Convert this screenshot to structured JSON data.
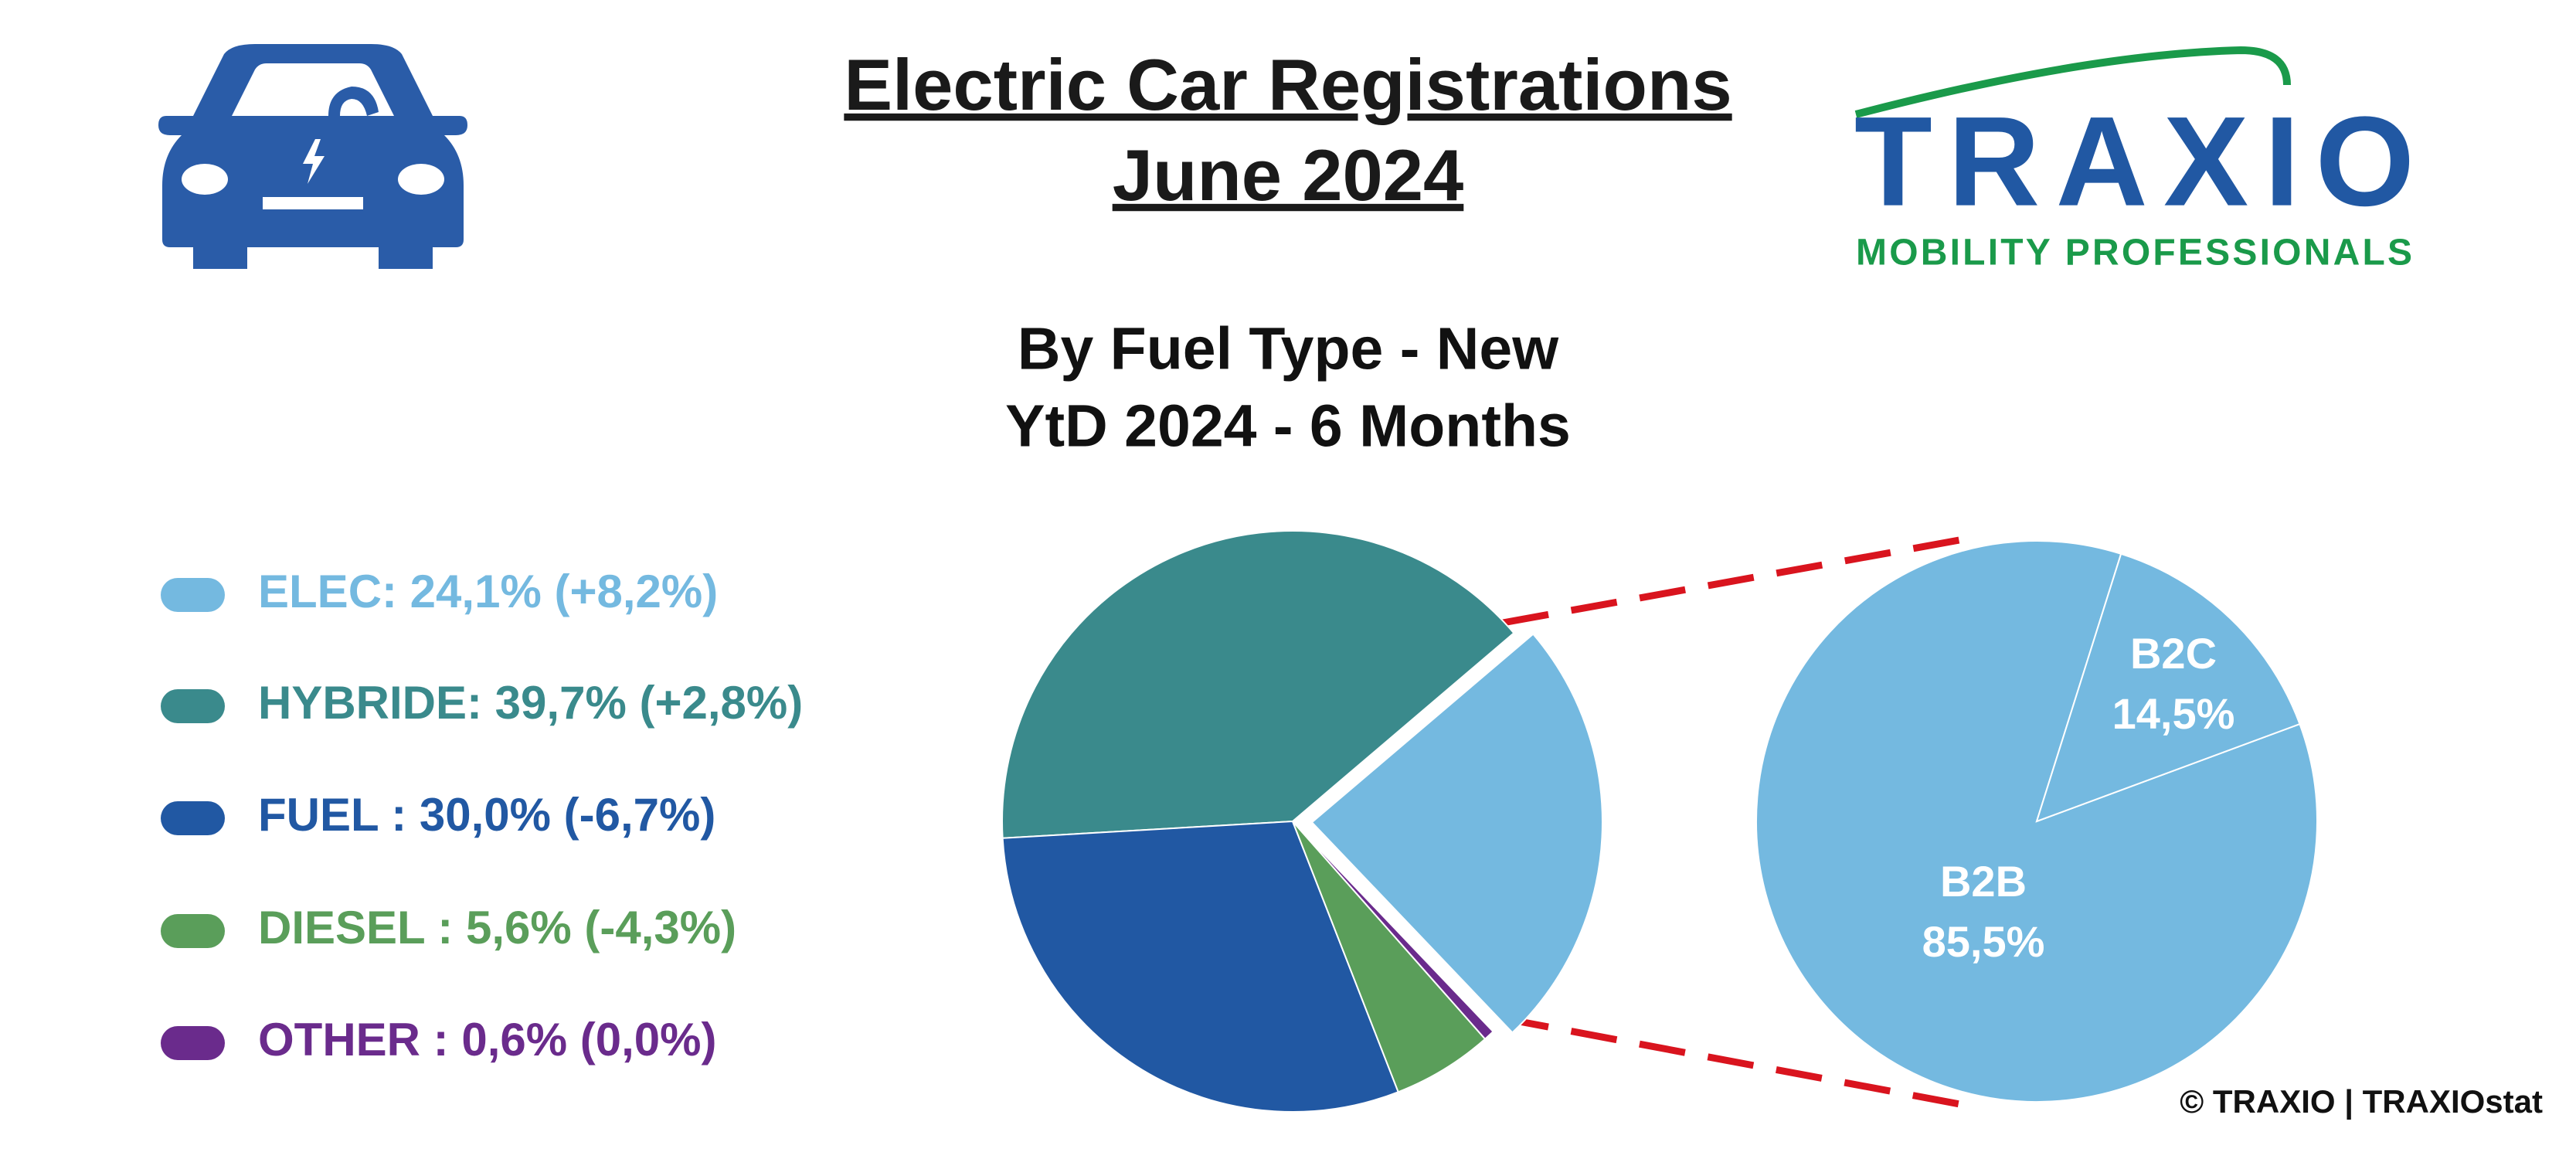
{
  "header": {
    "title": [
      "Electric Car Registrations",
      "June 2024"
    ],
    "logo": {
      "name": "TRAXIO",
      "tagline": "MOBILITY PROFESSIONALS"
    }
  },
  "chart_data": [
    {
      "type": "pie",
      "title": [
        "By Fuel Type - New",
        "YtD 2024 - 6 Months"
      ],
      "categories": [
        "ELEC: 24,1% (+8,2%)",
        "HYBRIDE: 39,7% (+2,8%)",
        "FUEL : 30,0% (-6,7%)",
        "DIESEL : 5,6% (-4,3%)",
        "OTHER : 0,6% (0,0%)"
      ],
      "values": [
        24.1,
        39.7,
        30.0,
        5.6,
        0.6
      ],
      "colors": [
        "#74b9e0",
        "#3a8a8c",
        "#2158a3",
        "#5a9e5a",
        "#6a2b8c"
      ],
      "legend": "left"
    },
    {
      "type": "pie",
      "categories": [
        "B2B",
        "B2C"
      ],
      "values": [
        85.5,
        14.5
      ],
      "value_labels": [
        "85,5%",
        "14,5%"
      ],
      "color": "#74b9e0"
    }
  ],
  "footer": "© TRAXIO | TRAXIOstat"
}
